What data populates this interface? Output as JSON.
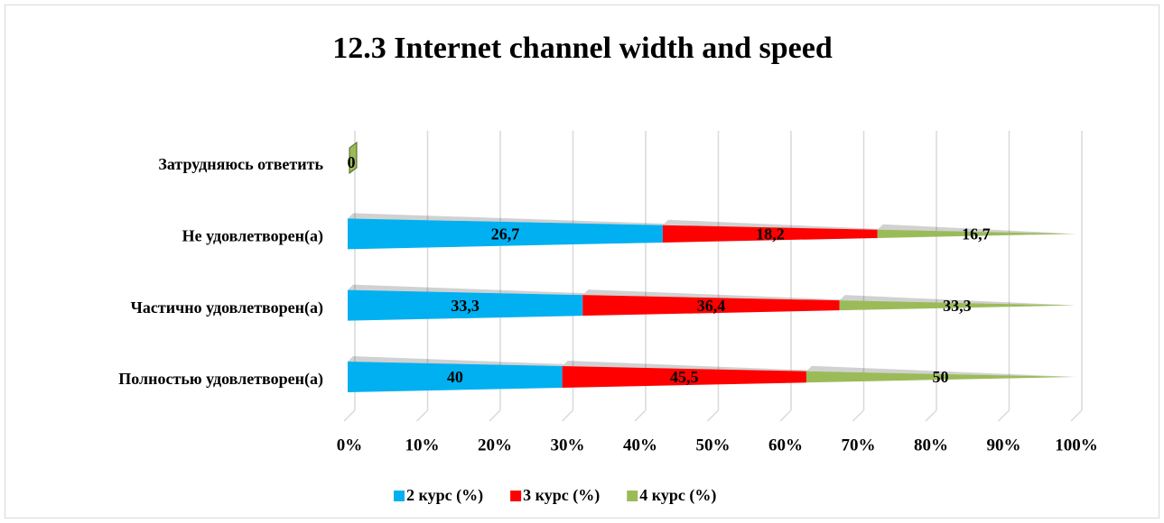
{
  "chart_data": {
    "type": "bar",
    "orientation": "horizontal",
    "stack": "percent",
    "shape": "pyramid",
    "title": "12.3 Internet channel width and speed",
    "categories": [
      "Полностью удовлетворен(а)",
      "Частично удовлетворен(а)",
      "Не удовлетворен(а)",
      "Затрудняюсь ответить"
    ],
    "series": [
      {
        "name": "2 курс (%)",
        "color": "#00b0f0",
        "values": [
          40,
          33.3,
          26.7,
          null
        ],
        "value_labels": [
          "40",
          "33,3",
          "26,7",
          null
        ]
      },
      {
        "name": "3 курс (%)",
        "color": "#ff0000",
        "values": [
          45.5,
          36.4,
          18.2,
          null
        ],
        "value_labels": [
          "45,5",
          "36,4",
          "18,2",
          null
        ]
      },
      {
        "name": "4 курс (%)",
        "color": "#9bbb59",
        "values": [
          50,
          33.3,
          16.7,
          0
        ],
        "value_labels": [
          "50",
          "33,3",
          "16,7",
          "0"
        ]
      }
    ],
    "xlim": [
      0,
      100
    ],
    "xticks": [
      {
        "value": 0,
        "label": "0%"
      },
      {
        "value": 10,
        "label": "10%"
      },
      {
        "value": 20,
        "label": "20%"
      },
      {
        "value": 30,
        "label": "30%"
      },
      {
        "value": 40,
        "label": "40%"
      },
      {
        "value": 50,
        "label": "50%"
      },
      {
        "value": 60,
        "label": "60%"
      },
      {
        "value": 70,
        "label": "70%"
      },
      {
        "value": 80,
        "label": "80%"
      },
      {
        "value": 90,
        "label": "90%"
      },
      {
        "value": 100,
        "label": "100%"
      }
    ],
    "grid": true,
    "legend": "bottom"
  }
}
